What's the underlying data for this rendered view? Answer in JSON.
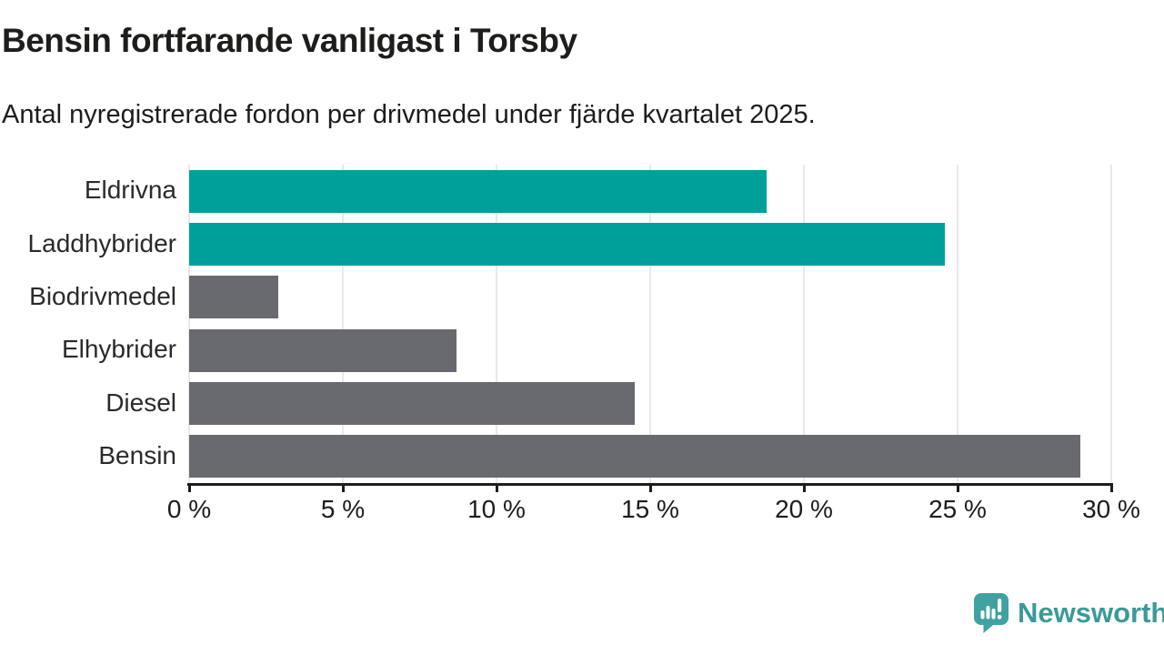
{
  "header": {
    "title": "Bensin fortfarande vanligast i Torsby",
    "subtitle": "Antal nyregistrerade fordon per drivmedel under fjärde kvartalet 2025."
  },
  "chart_data": {
    "type": "bar",
    "orientation": "horizontal",
    "title": "Bensin fortfarande vanligast i Torsby",
    "subtitle": "Antal nyregistrerade fordon per drivmedel under fjärde kvartalet 2025.",
    "categories": [
      "Eldrivna",
      "Laddhybrider",
      "Biodrivmedel",
      "Elhybrider",
      "Diesel",
      "Bensin"
    ],
    "values": [
      18.8,
      24.6,
      2.9,
      8.7,
      14.5,
      29
    ],
    "unit": "%",
    "xlim": [
      0,
      30
    ],
    "x_ticks": [
      0,
      5,
      10,
      15,
      20,
      25,
      30
    ],
    "x_tick_labels": [
      "0 %",
      "5 %",
      "10 %",
      "15 %",
      "20 %",
      "25 %",
      "30 %"
    ],
    "grid": true,
    "legend": "none",
    "bar_colors": [
      "#00a09a",
      "#00a09a",
      "#696970",
      "#696970",
      "#696970",
      "#696970"
    ],
    "highlight_color": "#00a09a",
    "default_color": "#696970",
    "gridline_color": "#e9e9e9",
    "axis_color": "#1d1d1b"
  },
  "branding": {
    "logo_text": "Newsworthy",
    "logo_color": "#3a9a99",
    "logo_icon": "speech-bubble-bar-chart-icon"
  }
}
